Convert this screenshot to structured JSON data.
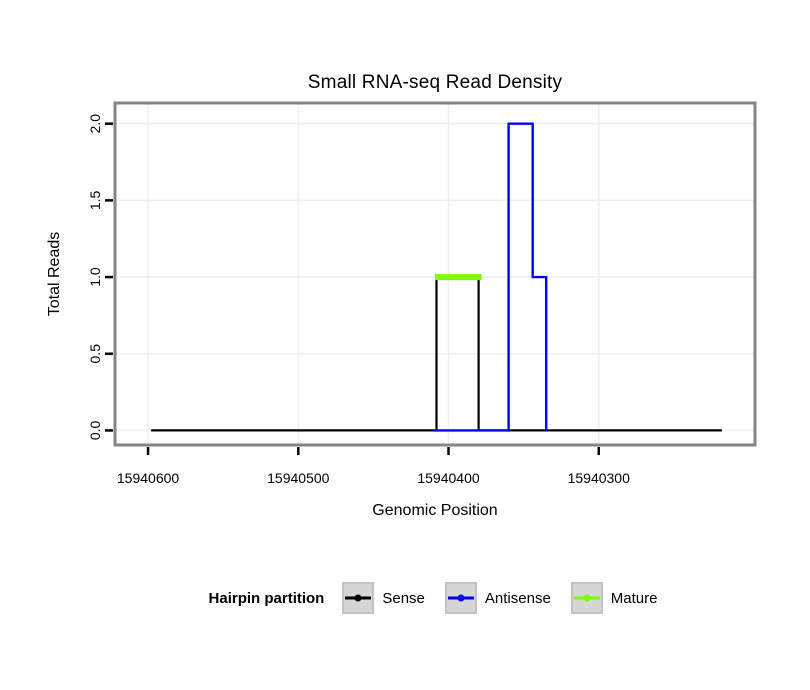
{
  "chart": {
    "title": "Small RNA-seq Read Density",
    "xlabel": "Genomic Position",
    "ylabel": "Total Reads"
  },
  "legend": {
    "title": "Hairpin partition",
    "items": [
      {
        "label": "Sense",
        "color": "#000000"
      },
      {
        "label": "Antisense",
        "color": "#0000FF"
      },
      {
        "label": "Mature",
        "color": "#7CFC00"
      }
    ]
  },
  "chart_data": {
    "type": "line",
    "subtype": "step-coverage",
    "title": "Small RNA-seq Read Density",
    "xlabel": "Genomic Position",
    "ylabel": "Total Reads",
    "grid": true,
    "grid_color": "#efefef",
    "panel_border_color": "#848484",
    "x_axis": {
      "reversed": true,
      "domain_left": 15940622,
      "domain_right": 15940196,
      "ticks": [
        15940600,
        15940500,
        15940400,
        15940300
      ],
      "tick_labels": [
        "15940600",
        "15940500",
        "15940400",
        "15940300"
      ]
    },
    "y_axis": {
      "domain": [
        -0.095,
        2.135
      ],
      "tick_values": [
        0.0,
        0.5,
        1.0,
        1.5,
        2.0
      ],
      "tick_labels": [
        "0.0",
        "0.5",
        "1.0",
        "1.5",
        "2.0"
      ]
    },
    "series": [
      {
        "name": "Sense",
        "color": "#000000",
        "width": 2.2,
        "points": [
          [
            15940598,
            0
          ],
          [
            15940408,
            0
          ],
          [
            15940408,
            1
          ],
          [
            15940380,
            1
          ],
          [
            15940380,
            0
          ],
          [
            15940218,
            0
          ]
        ]
      },
      {
        "name": "Antisense",
        "color": "#0000FF",
        "width": 2.4,
        "points": [
          [
            15940410,
            0
          ],
          [
            15940360,
            0
          ],
          [
            15940360,
            2
          ],
          [
            15940344,
            2
          ],
          [
            15940344,
            1
          ],
          [
            15940335,
            1
          ],
          [
            15940335,
            0
          ]
        ]
      },
      {
        "name": "Mature",
        "color": "#7CFC00",
        "width": 6,
        "points": [
          [
            15940409,
            1
          ],
          [
            15940378,
            1
          ]
        ]
      }
    ]
  }
}
